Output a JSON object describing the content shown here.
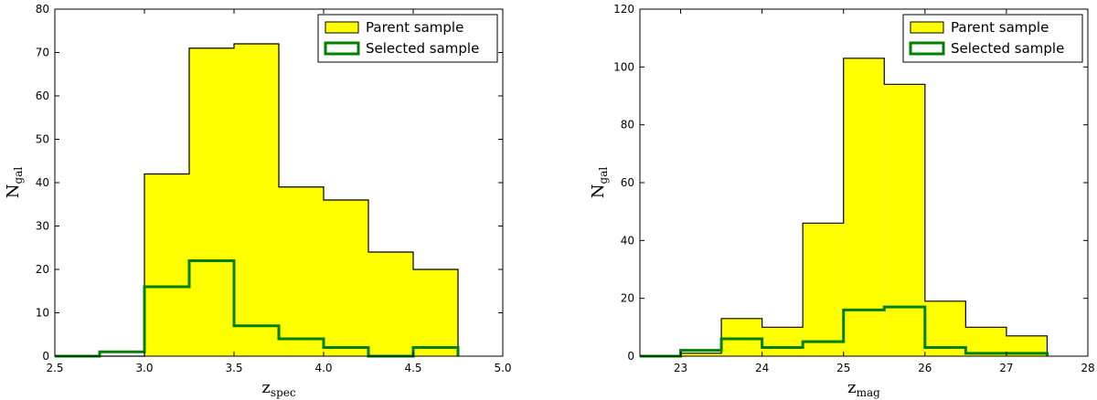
{
  "chart_data": [
    {
      "type": "histogram",
      "xlabel_main": "z",
      "xlabel_sub": "spec",
      "ylabel_main": "N",
      "ylabel_sub": "gal",
      "xlim": [
        2.5,
        5.0
      ],
      "ylim": [
        0,
        80
      ],
      "xticks": [
        "2.5",
        "3.0",
        "3.5",
        "4.0",
        "4.5",
        "5.0"
      ],
      "yticks": [
        "0",
        "10",
        "20",
        "30",
        "40",
        "50",
        "60",
        "70",
        "80"
      ],
      "legend_position": "upper-right",
      "bin_edges": [
        2.5,
        2.75,
        3.0,
        3.25,
        3.5,
        3.75,
        4.0,
        4.25,
        4.5,
        4.75
      ],
      "series": [
        {
          "name": "Parent sample",
          "style": "filled",
          "color": "#ffff00",
          "edge_color": "#000000",
          "values": [
            0,
            0,
            42,
            71,
            72,
            39,
            36,
            24,
            20
          ]
        },
        {
          "name": "Selected sample",
          "style": "step",
          "color": "#008000",
          "values": [
            0,
            1,
            16,
            22,
            7,
            4,
            2,
            0,
            2
          ]
        }
      ]
    },
    {
      "type": "histogram",
      "xlabel_main": "z",
      "xlabel_sub": "mag",
      "ylabel_main": "N",
      "ylabel_sub": "gal",
      "xlim": [
        22.5,
        28
      ],
      "ylim": [
        0,
        120
      ],
      "xticks": [
        "23",
        "24",
        "25",
        "26",
        "27",
        "28"
      ],
      "yticks": [
        "0",
        "20",
        "40",
        "60",
        "80",
        "100",
        "120"
      ],
      "legend_position": "upper-right",
      "bin_edges": [
        22.5,
        23.0,
        23.5,
        24.0,
        24.5,
        25.0,
        25.5,
        26.0,
        26.5,
        27.0,
        27.5
      ],
      "series": [
        {
          "name": "Parent sample",
          "style": "filled",
          "color": "#ffff00",
          "edge_color": "#000000",
          "values": [
            0,
            1,
            13,
            10,
            46,
            103,
            94,
            19,
            10,
            7
          ]
        },
        {
          "name": "Selected sample",
          "style": "step",
          "color": "#008000",
          "values": [
            0,
            2,
            6,
            3,
            5,
            16,
            17,
            3,
            1,
            1
          ]
        }
      ]
    }
  ]
}
